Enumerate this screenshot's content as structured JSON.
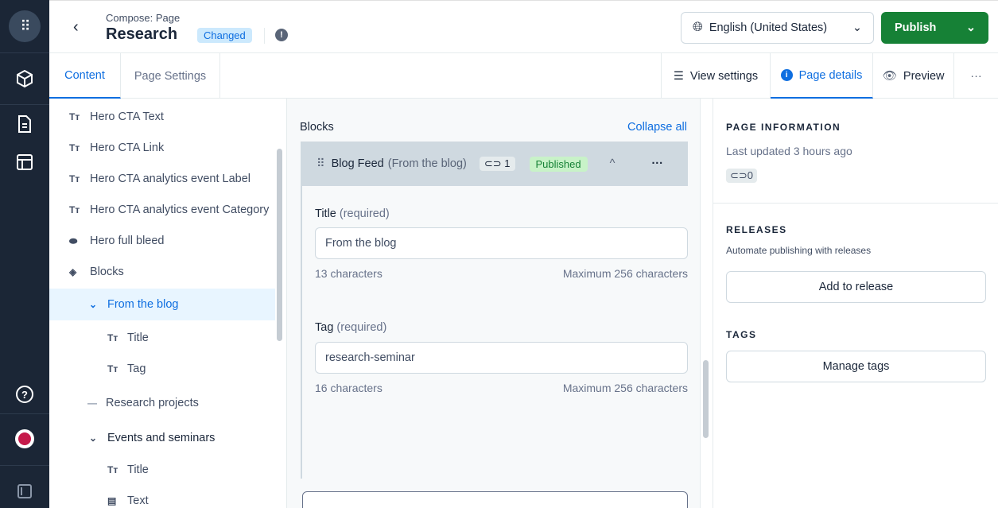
{
  "header": {
    "subtitle": "Compose: Page",
    "title": "Research",
    "status": "Changed",
    "locale": "English (United States)",
    "publish": "Publish"
  },
  "tabs": {
    "content": "Content",
    "page_settings": "Page Settings",
    "view_settings": "View settings",
    "page_details": "Page details",
    "preview": "Preview"
  },
  "tree": {
    "items": [
      {
        "label": "Hero CTA Text",
        "icon": "text-icon"
      },
      {
        "label": "Hero CTA Link",
        "icon": "text-icon"
      },
      {
        "label": "Hero CTA analytics event Label",
        "icon": "text-icon"
      },
      {
        "label": "Hero CTA analytics event Category",
        "icon": "text-icon"
      },
      {
        "label": "Hero full bleed",
        "icon": "toggle-icon"
      },
      {
        "label": "Blocks",
        "icon": "layers-icon"
      },
      {
        "label": "From the blog",
        "icon": "chevron-down-icon"
      },
      {
        "label": "Title",
        "icon": "text-icon"
      },
      {
        "label": "Tag",
        "icon": "text-icon"
      },
      {
        "label": "Research projects",
        "icon": "dash-icon"
      },
      {
        "label": "Events and seminars",
        "icon": "chevron-down-icon"
      },
      {
        "label": "Title",
        "icon": "text-icon"
      },
      {
        "label": "Text",
        "icon": "richtext-icon"
      }
    ]
  },
  "editor": {
    "blocks_label": "Blocks",
    "collapse_all": "Collapse all",
    "block": {
      "name": "Blog Feed",
      "subname": "(From the blog)",
      "links": "1",
      "status": "Published"
    },
    "title_field": {
      "label": "Title",
      "required": "(required)",
      "value": "From the blog",
      "count": "13 characters",
      "max": "Maximum 256 characters"
    },
    "tag_field": {
      "label": "Tag",
      "required": "(required)",
      "value": "research-seminar",
      "count": "16 characters",
      "max": "Maximum 256 characters"
    }
  },
  "details": {
    "page_info": "PAGE INFORMATION",
    "last_updated": "Last updated 3 hours ago",
    "links": "0",
    "releases": "RELEASES",
    "releases_desc": "Automate publishing with releases",
    "add_release": "Add to release",
    "tags": "TAGS",
    "manage_tags": "Manage tags"
  },
  "colors": {
    "accent": "#0e6ee0",
    "publish": "#168136",
    "nav": "#1b2636"
  }
}
